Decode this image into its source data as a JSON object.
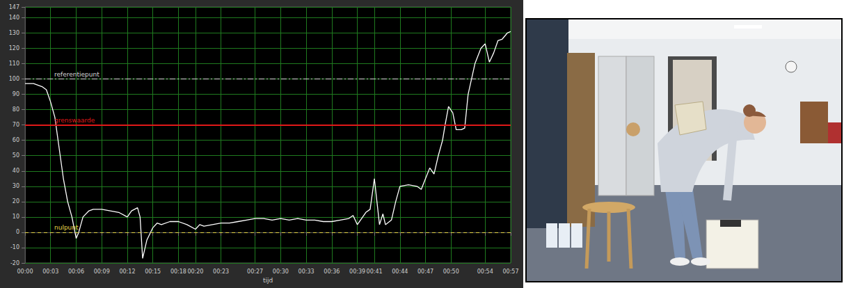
{
  "chart_data": {
    "type": "line",
    "xlabel": "tijd",
    "x": [
      0,
      1,
      2,
      2.5,
      3,
      3.5,
      4,
      4.5,
      5,
      5.5,
      6,
      6.3,
      6.8,
      7.5,
      8,
      9,
      10,
      11,
      12,
      12.5,
      13.2,
      13.5,
      13.8,
      14.3,
      15,
      15.5,
      16,
      17,
      18,
      19,
      20,
      20.5,
      21,
      22,
      23,
      24,
      25,
      26,
      27,
      28,
      29,
      30,
      31,
      32,
      33,
      34,
      35,
      36,
      37,
      38,
      38.5,
      39,
      39.5,
      40,
      40.5,
      41,
      41.3,
      41.6,
      42,
      42.3,
      43,
      43.5,
      44,
      45,
      46,
      46.5,
      47,
      47.5,
      48,
      48.5,
      49,
      49.3,
      49.7,
      50.2,
      50.6,
      51.2,
      51.6,
      52,
      52.8,
      53.5,
      54,
      54.5,
      55,
      55.5,
      56,
      56.6,
      57
    ],
    "values": [
      97,
      97,
      95,
      93,
      85,
      75,
      55,
      35,
      20,
      10,
      -4,
      0,
      10,
      14,
      15,
      15,
      14,
      13,
      10,
      14,
      16,
      10,
      -17,
      -5,
      3,
      6,
      5,
      7,
      7,
      5,
      2,
      5,
      4,
      5,
      6,
      6,
      7,
      8,
      9,
      9,
      8,
      9,
      8,
      9,
      8,
      8,
      7,
      7,
      8,
      9,
      11,
      5,
      9,
      13,
      15,
      35,
      20,
      5,
      12,
      5,
      8,
      20,
      30,
      31,
      30,
      28,
      35,
      42,
      38,
      50,
      60,
      70,
      82,
      78,
      67,
      67,
      68,
      90,
      110,
      120,
      123,
      111,
      117,
      125,
      126,
      130,
      131
    ],
    "color": "#ffffff",
    "xlim": [
      0,
      57
    ],
    "xticks": [
      {
        "value": 0,
        "label": "00:00"
      },
      {
        "value": 3,
        "label": "00:03"
      },
      {
        "value": 6,
        "label": "00:06"
      },
      {
        "value": 9,
        "label": "00:09"
      },
      {
        "value": 12,
        "label": "00:12"
      },
      {
        "value": 15,
        "label": "00:15"
      },
      {
        "value": 18,
        "label": "00:18"
      },
      {
        "value": 20,
        "label": "00:20"
      },
      {
        "value": 23,
        "label": "00:23"
      },
      {
        "value": 27,
        "label": "00:27"
      },
      {
        "value": 30,
        "label": "00:30"
      },
      {
        "value": 33,
        "label": "00:33"
      },
      {
        "value": 36,
        "label": "00:36"
      },
      {
        "value": 39,
        "label": "00:39"
      },
      {
        "value": 41,
        "label": "00:41"
      },
      {
        "value": 44,
        "label": "00:44"
      },
      {
        "value": 47,
        "label": "00:47"
      },
      {
        "value": 50,
        "label": "00:50"
      },
      {
        "value": 54,
        "label": "00:54"
      },
      {
        "value": 57,
        "label": "00:57"
      }
    ],
    "ylim": [
      -20,
      147
    ],
    "yticks": [
      -20,
      -10,
      0,
      10,
      20,
      30,
      40,
      50,
      60,
      70,
      80,
      90,
      100,
      110,
      120,
      130,
      140,
      147
    ],
    "grid": true,
    "annotations": [
      {
        "label": "referentiepunt",
        "y": 100,
        "color": "#d8d8d8",
        "line_style": "dashdot"
      },
      {
        "label": "grenswaarde",
        "y": 70,
        "color": "#e01818",
        "line_style": "solid"
      },
      {
        "label": "nulpunt",
        "y": 0,
        "color": "#e8d84a",
        "line_style": "dashed"
      }
    ]
  }
}
